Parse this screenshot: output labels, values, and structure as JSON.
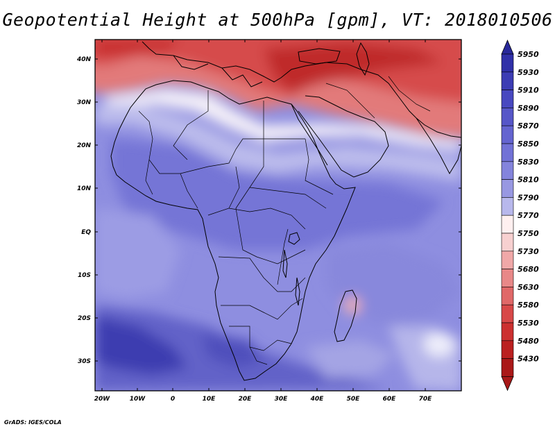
{
  "title": "Geopotential Height at 500hPa [gpm], VT: 2018010506",
  "credit": "GrADS: IGES/COLA",
  "map": {
    "lat_labels": [
      "40N",
      "30N",
      "20N",
      "10N",
      "EQ",
      "10S",
      "20S",
      "30S"
    ],
    "lon_labels": [
      "20W",
      "10W",
      "0",
      "10E",
      "20E",
      "30E",
      "40E",
      "50E",
      "60E",
      "70E"
    ]
  },
  "colorbar": {
    "levels": [
      "5950",
      "5930",
      "5910",
      "5890",
      "5870",
      "5850",
      "5830",
      "5810",
      "5790",
      "5770",
      "5750",
      "5730",
      "5680",
      "5630",
      "5580",
      "5530",
      "5480",
      "5430"
    ],
    "colors": [
      "#3030a8",
      "#3c3cb4",
      "#4848c0",
      "#5656c8",
      "#6464d0",
      "#7272d6",
      "#8484dc",
      "#9898e2",
      "#b8b8ec",
      "#fff0f0",
      "#f7d0d0",
      "#f0a8a8",
      "#e88888",
      "#e06868",
      "#d84848",
      "#cc3030",
      "#bb2020",
      "#aa1818"
    ],
    "top_arrow_color": "#28289a",
    "bottom_arrow_color": "#a81818"
  }
}
